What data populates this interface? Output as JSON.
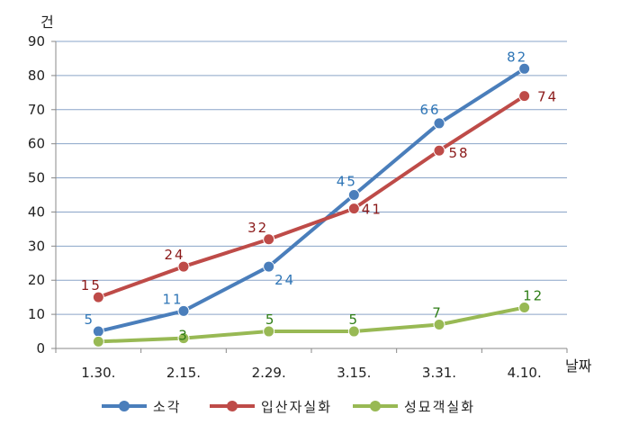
{
  "chart_data": {
    "type": "line",
    "ylabel": "건",
    "xlabel": "날짜",
    "ylim": [
      0,
      90
    ],
    "yticks": [
      0,
      10,
      20,
      30,
      40,
      50,
      60,
      70,
      80,
      90
    ],
    "grid": true,
    "legend_position": "bottom",
    "categories": [
      "1.30.",
      "2.15.",
      "2.29.",
      "3.15.",
      "3.31.",
      "4.10."
    ],
    "series": [
      {
        "name": "소각",
        "color": "#4a7ebb",
        "label_color": "#2e75b6",
        "values": [
          5,
          11,
          24,
          45,
          66,
          82
        ]
      },
      {
        "name": "입산자실화",
        "color": "#be4b48",
        "label_color": "#8b1a1a",
        "values": [
          15,
          24,
          32,
          41,
          58,
          74
        ]
      },
      {
        "name": "성묘객실화",
        "color": "#98b954",
        "label_color": "#2e7d16",
        "values": [
          2,
          3,
          5,
          5,
          7,
          12
        ]
      }
    ],
    "data_labels": [
      [
        "5",
        "11",
        "24",
        "45",
        "66",
        "82"
      ],
      [
        "15",
        "24",
        "32",
        "41",
        "58",
        "74"
      ],
      [
        "",
        "3",
        "5",
        "5",
        "7",
        "12"
      ]
    ]
  }
}
